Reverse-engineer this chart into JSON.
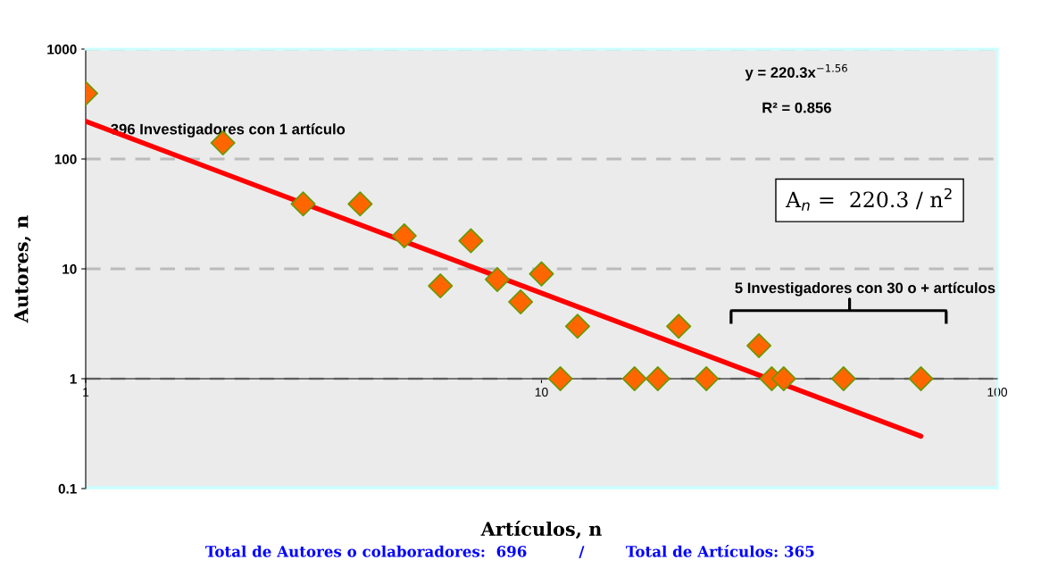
{
  "chart_data": {
    "type": "scatter",
    "xlabel": "Artículos, n",
    "ylabel": "Autores, n",
    "log": "xy",
    "xlim": [
      1,
      100
    ],
    "ylim": [
      0.1,
      1000
    ],
    "xticks": [
      1,
      10,
      100
    ],
    "yticks": [
      0.1,
      1,
      10,
      100,
      1000
    ],
    "grid": "y",
    "series": [
      {
        "marker": "diamond",
        "color": "#ff6600",
        "x": [
          1,
          2,
          3,
          4,
          5,
          6,
          7,
          8,
          9,
          10,
          11,
          12,
          16,
          18,
          20,
          23,
          30,
          32,
          34,
          46,
          68
        ],
        "values": [
          396,
          140,
          39,
          39,
          20,
          7,
          18,
          8,
          5,
          9,
          1,
          3,
          1,
          1,
          3,
          1,
          2,
          1,
          1,
          1,
          1
        ]
      },
      {
        "type": "line",
        "marker": "none",
        "color": "#ff0000",
        "line_style": "solid",
        "x": [
          1,
          68
        ],
        "values": [
          220.3,
          0.3
        ]
      }
    ],
    "annotations": [
      {
        "text": "396 Investigadores con 1 artículo",
        "x": 1,
        "y": 396
      },
      "y = 220.3x$^{−1.56}$",
      "R² = 0.856",
      "A$_{n}$ =  220.3 / n$^{2}$",
      "5 Investigadores con 30 o + artículos",
      "Total de Autores o colaboradores:  696          /        Total de Artículos: 365"
    ]
  }
}
